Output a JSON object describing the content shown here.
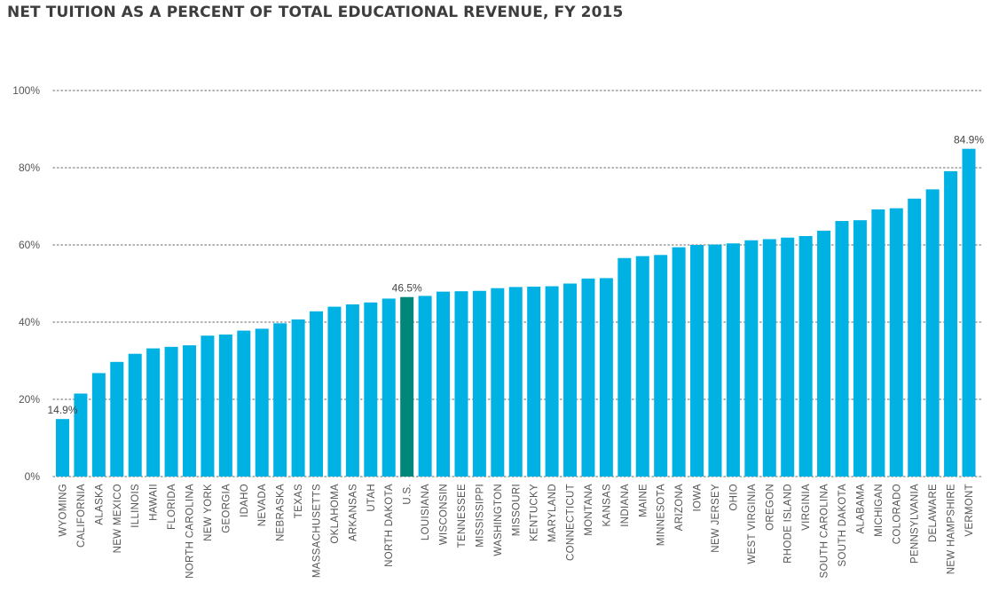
{
  "chart_data": {
    "type": "bar",
    "title": "NET TUITION AS A PERCENT OF TOTAL EDUCATIONAL REVENUE, FY 2015",
    "xlabel": "",
    "ylabel": "",
    "ylim": [
      0,
      100
    ],
    "yticks": [
      0,
      20,
      40,
      60,
      80,
      100
    ],
    "ytick_labels": [
      "0%",
      "20%",
      "40%",
      "60%",
      "80%",
      "100%"
    ],
    "grid": "horizontal dotted",
    "legend": "none",
    "colors": {
      "bar": "#00B2E3",
      "highlight": "#00877A",
      "grid": "#9a9a9a"
    },
    "highlight_category": "U.S.",
    "categories": [
      "WYOMING",
      "CALIFORNIA",
      "ALASKA",
      "NEW MEXICO",
      "ILLINOIS",
      "HAWAII",
      "FLORIDA",
      "NORTH CAROLINA",
      "NEW YORK",
      "GEORGIA",
      "IDAHO",
      "NEVADA",
      "NEBRASKA",
      "TEXAS",
      "MASSACHUSETTS",
      "OKLAHOMA",
      "ARKANSAS",
      "UTAH",
      "NORTH DAKOTA",
      "U.S.",
      "LOUISIANA",
      "WISCONSIN",
      "TENNESSEE",
      "MISSISSIPPI",
      "WASHINGTON",
      "MISSOURI",
      "KENTUCKY",
      "MARYLAND",
      "CONNECTICUT",
      "MONTANA",
      "KANSAS",
      "INDIANA",
      "MAINE",
      "MINNESOTA",
      "ARIZONA",
      "IOWA",
      "NEW JERSEY",
      "OHIO",
      "WEST VIRGINIA",
      "OREGON",
      "RHODE ISLAND",
      "VIRGINIA",
      "SOUTH CAROLINA",
      "SOUTH DAKOTA",
      "ALABAMA",
      "MICHIGAN",
      "COLORADO",
      "PENNSYLVANIA",
      "DELAWARE",
      "NEW HAMPSHIRE",
      "VERMONT"
    ],
    "values": [
      14.9,
      21.5,
      26.8,
      29.7,
      31.8,
      33.2,
      33.6,
      34.0,
      36.5,
      36.8,
      37.8,
      38.3,
      39.7,
      40.7,
      42.8,
      44.0,
      44.6,
      45.1,
      46.1,
      46.5,
      46.8,
      47.9,
      48.0,
      48.1,
      48.8,
      49.1,
      49.2,
      49.3,
      50.0,
      51.3,
      51.4,
      56.6,
      57.1,
      57.4,
      59.4,
      60.0,
      60.1,
      60.4,
      61.2,
      61.5,
      61.9,
      62.3,
      63.7,
      66.2,
      66.4,
      69.2,
      69.5,
      72.0,
      74.4,
      79.1,
      84.9
    ],
    "data_labels": [
      {
        "category": "WYOMING",
        "text": "14.9%"
      },
      {
        "category": "U.S.",
        "text": "46.5%"
      },
      {
        "category": "VERMONT",
        "text": "84.9%"
      }
    ]
  }
}
